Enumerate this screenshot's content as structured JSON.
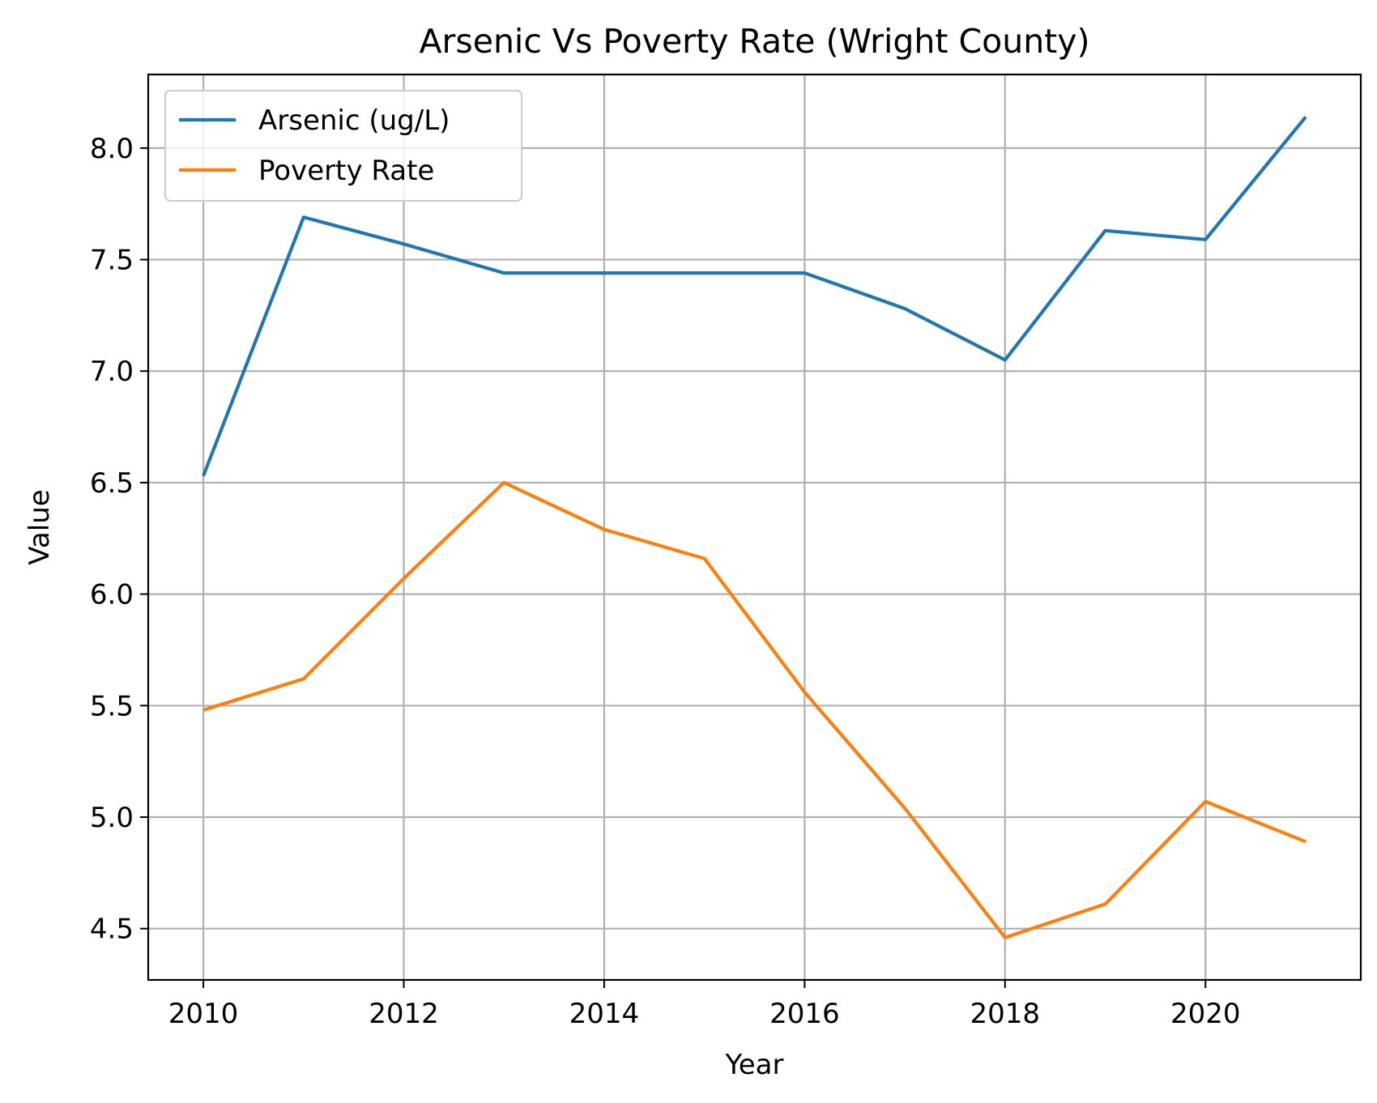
{
  "chart_data": {
    "type": "line",
    "title": "Arsenic Vs Poverty Rate (Wright County)",
    "xlabel": "Year",
    "ylabel": "Value",
    "x": [
      2010,
      2011,
      2012,
      2013,
      2014,
      2015,
      2016,
      2017,
      2018,
      2019,
      2020,
      2021
    ],
    "xlim": [
      2009.45,
      2021.55
    ],
    "ylim": [
      4.27,
      8.33
    ],
    "xticks": [
      2010,
      2012,
      2014,
      2016,
      2018,
      2020
    ],
    "yticks": [
      4.5,
      5.0,
      5.5,
      6.0,
      6.5,
      7.0,
      7.5,
      8.0
    ],
    "ytick_labels": [
      "4.5",
      "5.0",
      "5.5",
      "6.0",
      "6.5",
      "7.0",
      "7.5",
      "8.0"
    ],
    "grid": true,
    "legend_position": "upper left",
    "series": [
      {
        "name": "Arsenic (ug/L)",
        "color": "#1f77b4",
        "values": [
          6.53,
          7.69,
          7.57,
          7.44,
          7.44,
          7.44,
          7.44,
          7.28,
          7.05,
          7.63,
          7.59,
          8.14
        ]
      },
      {
        "name": "Poverty Rate",
        "color": "#ff7f0e",
        "values": [
          5.48,
          5.62,
          6.07,
          6.5,
          6.29,
          6.16,
          5.56,
          5.04,
          4.46,
          4.61,
          5.07,
          4.89
        ]
      }
    ]
  }
}
